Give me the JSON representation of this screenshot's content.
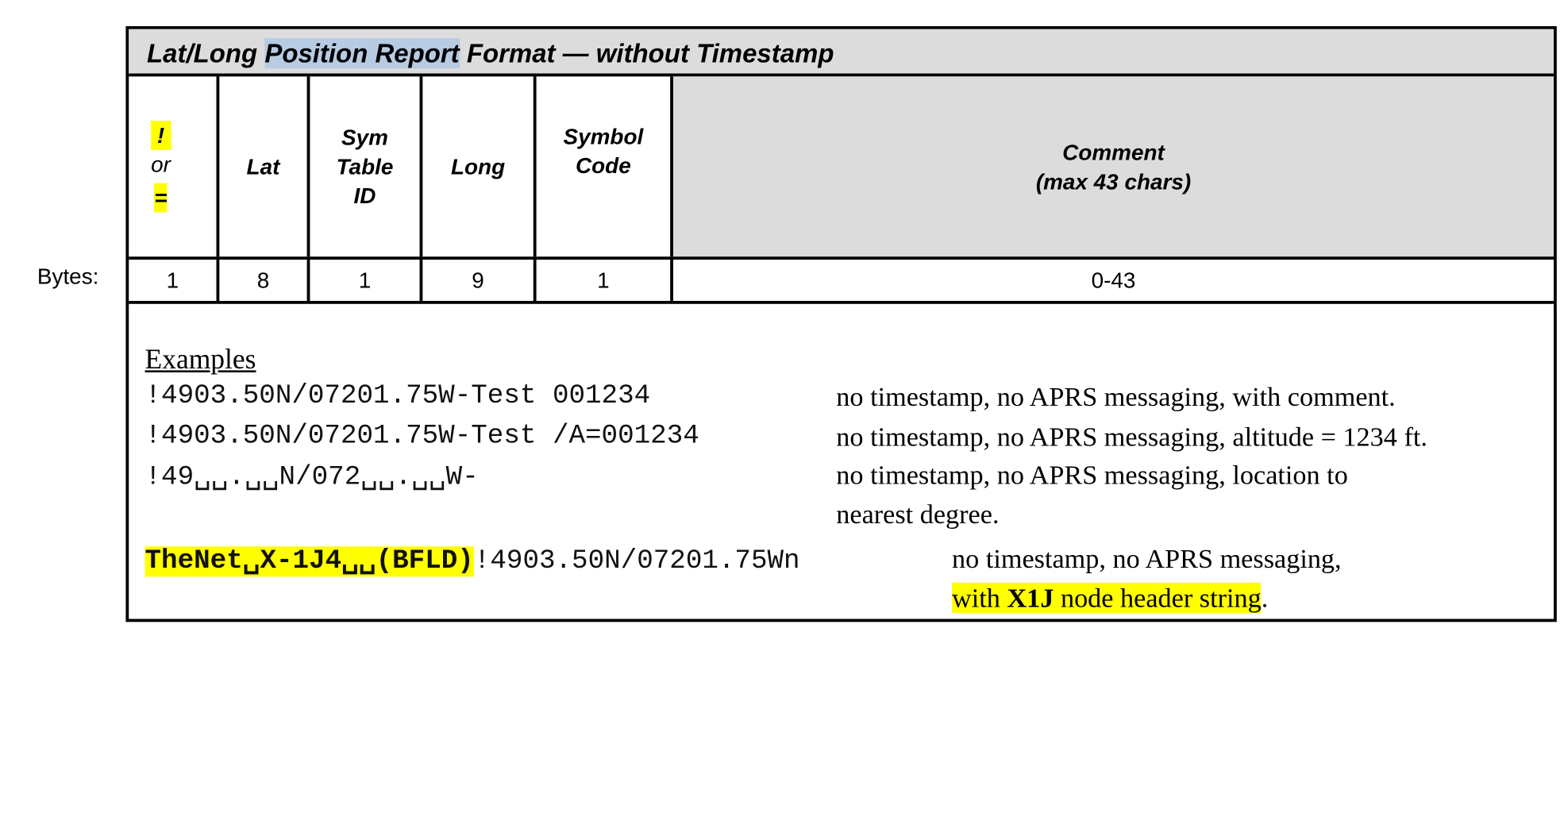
{
  "bytes_label": "Bytes:",
  "format": {
    "title_pre": "Lat/Long ",
    "title_sel": "Position Report",
    "title_post": " Format — without Timestamp",
    "headers": {
      "type_bang": "!",
      "type_or": " or",
      "type_eq": "=",
      "lat": "Lat",
      "sym_table_1": "Sym",
      "sym_table_2": "Table",
      "sym_table_3": "ID",
      "long": "Long",
      "symbol_code_1": "Symbol",
      "symbol_code_2": "Code",
      "comment_1": "Comment",
      "comment_2": "(max 43 chars)"
    },
    "bytes": [
      "1",
      "8",
      "1",
      "9",
      "1",
      "0-43"
    ]
  },
  "examples": {
    "title": "Examples",
    "rows": [
      {
        "code": "!4903.50N/07201.75W-Test 001234",
        "desc": "no timestamp, no APRS messaging, with comment."
      },
      {
        "code": "!4903.50N/07201.75W-Test /A=001234",
        "desc": "no timestamp, no APRS messaging, altitude = 1234 ft."
      },
      {
        "code": "!49␣␣.␣␣N/072␣␣.␣␣W-",
        "desc": "no timestamp, no APRS messaging, location to",
        "desc2": "nearest degree."
      }
    ],
    "net": {
      "prefix": "TheNet␣X-1J4␣␣(BFLD)",
      "code": "!4903.50N/07201.75Wn",
      "desc": "no timestamp, no APRS messaging,",
      "desc2_pre": "with ",
      "desc2_bold": "X1J",
      "desc2_post": " node header string",
      "desc2_end": "."
    }
  }
}
